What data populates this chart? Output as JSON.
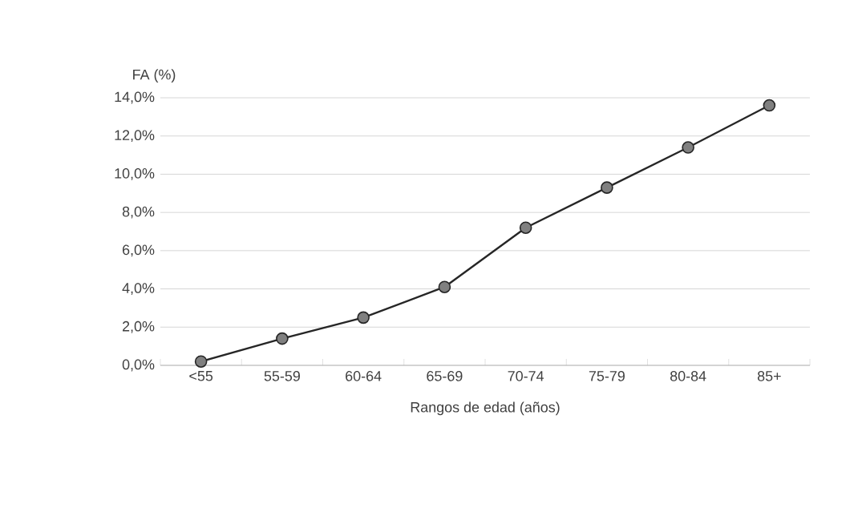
{
  "chart_data": {
    "type": "line",
    "xlabel": "Rangos de edad (años)",
    "ylabel": "FA (%)",
    "categories": [
      "<55",
      "55-59",
      "60-64",
      "65-69",
      "70-74",
      "75-79",
      "80-84",
      "85+"
    ],
    "series": [
      {
        "color": "#262626",
        "values": [
          0.2,
          1.4,
          2.5,
          4.1,
          7.2,
          9.3,
          11.4,
          13.6
        ]
      }
    ],
    "ylim": [
      0,
      14
    ],
    "yticks": [
      {
        "value": 0,
        "label": "0,0%"
      },
      {
        "value": 2,
        "label": "2,0%"
      },
      {
        "value": 4,
        "label": "4,0%"
      },
      {
        "value": 6,
        "label": "6,0%"
      },
      {
        "value": 8,
        "label": "8,0%"
      },
      {
        "value": 10,
        "label": "10,0%"
      },
      {
        "value": 12,
        "label": "12,0%"
      },
      {
        "value": 14,
        "label": "14,0%"
      }
    ],
    "grid": "y",
    "marker": "circle",
    "line_style": "solid"
  }
}
